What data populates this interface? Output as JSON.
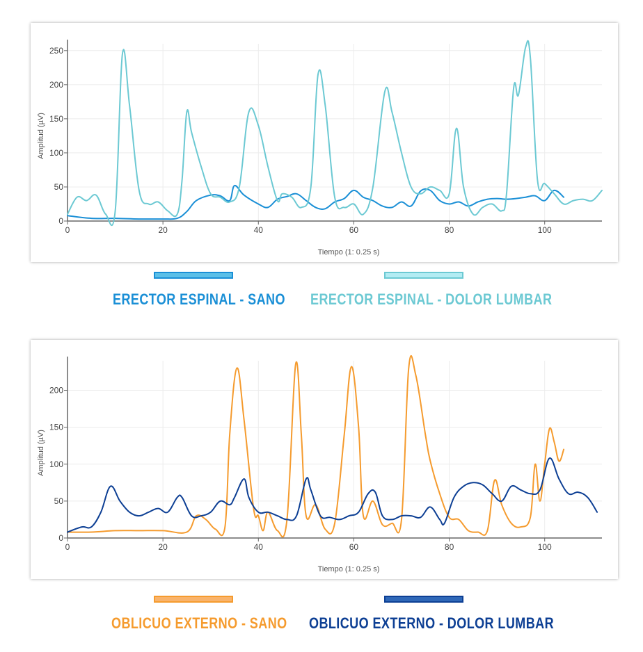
{
  "chart_data": [
    {
      "type": "line",
      "xlabel": "Tiempo (1: 0.25 s)",
      "ylabel": "Amplitud (µV)",
      "xlim": [
        0,
        112
      ],
      "ylim": [
        0,
        260
      ],
      "xticks": [
        0,
        20,
        40,
        60,
        80,
        100
      ],
      "yticks": [
        0,
        50,
        100,
        150,
        200,
        250
      ],
      "grid": true,
      "legend_position": "bottom",
      "series": [
        {
          "name": "ERECTOR ESPINAL - SANO",
          "color": "#1a8fd6",
          "x": [
            0,
            5,
            10,
            15,
            20,
            23,
            25,
            27,
            30,
            32,
            34,
            35,
            37,
            40,
            42,
            44,
            46,
            48,
            50,
            52,
            54,
            56,
            58,
            60,
            62,
            64,
            66,
            68,
            70,
            72,
            74,
            76,
            78,
            80,
            82,
            84,
            86,
            88,
            90,
            92,
            94,
            96,
            98,
            100,
            102,
            104
          ],
          "y": [
            8,
            4,
            4,
            3,
            3,
            4,
            14,
            30,
            38,
            37,
            30,
            52,
            38,
            25,
            20,
            32,
            36,
            40,
            30,
            20,
            18,
            28,
            33,
            45,
            35,
            30,
            22,
            20,
            28,
            22,
            44,
            45,
            30,
            25,
            28,
            22,
            28,
            32,
            33,
            32,
            33,
            35,
            37,
            30,
            45,
            35
          ]
        },
        {
          "name": "ERECTOR ESPINAL - DOLOR LUMBAR",
          "color": "#6cc9d3",
          "x": [
            0,
            2,
            4,
            6,
            8,
            10,
            11.5,
            13,
            15,
            17,
            19,
            21,
            23,
            24,
            25,
            26,
            28,
            30,
            32,
            34,
            36,
            38,
            40,
            42,
            44,
            45,
            47,
            49,
            51,
            52.5,
            54,
            56,
            58,
            60,
            62,
            64,
            66.5,
            68,
            70,
            72,
            74,
            76,
            78,
            80,
            81.5,
            83,
            85,
            87,
            89,
            91,
            92,
            93.5,
            94.5,
            96,
            97,
            98.5,
            100,
            102,
            104,
            106,
            108,
            110,
            112
          ],
          "y": [
            10,
            35,
            30,
            38,
            10,
            15,
            245,
            170,
            45,
            25,
            28,
            15,
            10,
            60,
            160,
            130,
            80,
            40,
            35,
            28,
            50,
            160,
            140,
            80,
            30,
            40,
            35,
            20,
            50,
            215,
            170,
            35,
            20,
            25,
            10,
            50,
            190,
            160,
            100,
            50,
            40,
            50,
            45,
            40,
            136,
            50,
            10,
            20,
            25,
            15,
            40,
            195,
            185,
            255,
            240,
            60,
            55,
            40,
            25,
            30,
            32,
            30,
            45
          ]
        }
      ]
    },
    {
      "type": "line",
      "xlabel": "Tiempo (1: 0.25 s)",
      "ylabel": "Amplitud (µV)",
      "xlim": [
        0,
        112
      ],
      "ylim": [
        0,
        240
      ],
      "xticks": [
        0,
        20,
        40,
        60,
        80,
        100
      ],
      "yticks": [
        0,
        50,
        100,
        150,
        200
      ],
      "grid": true,
      "legend_position": "bottom",
      "series": [
        {
          "name": "OBLICUO EXTERNO - SANO",
          "color": "#f59b2e",
          "x": [
            0,
            5,
            10,
            15,
            20,
            25,
            27,
            29,
            31,
            33,
            34,
            35.5,
            37,
            39,
            40,
            41,
            42,
            44,
            46,
            47.8,
            49,
            50,
            52,
            54,
            56,
            58,
            59.5,
            61,
            62,
            64,
            66,
            68,
            70,
            71.5,
            73,
            75,
            76,
            78,
            80,
            82,
            84,
            86,
            88,
            89.5,
            91,
            93,
            95,
            97,
            98,
            99,
            100,
            101,
            102,
            103,
            104
          ],
          "y": [
            8,
            8,
            10,
            10,
            10,
            8,
            30,
            25,
            12,
            15,
            140,
            230,
            160,
            40,
            30,
            10,
            35,
            10,
            25,
            235,
            140,
            30,
            45,
            12,
            20,
            140,
            232,
            150,
            30,
            50,
            18,
            20,
            25,
            230,
            220,
            140,
            105,
            60,
            28,
            25,
            10,
            8,
            10,
            78,
            45,
            20,
            15,
            28,
            100,
            50,
            100,
            148,
            130,
            104,
            120
          ]
        },
        {
          "name": "OBLICUO EXTERNO - DOLOR LUMBAR",
          "color": "#0d3f94",
          "x": [
            0,
            3,
            5,
            7,
            9,
            11,
            13,
            15,
            17,
            19,
            21,
            23,
            24,
            26,
            28,
            30,
            32,
            34,
            35,
            37,
            38,
            40,
            42,
            44,
            46,
            48,
            50,
            51,
            53,
            55,
            57,
            59,
            61,
            63,
            64.5,
            66,
            68,
            70,
            72,
            74,
            76,
            78,
            79,
            81,
            83,
            85,
            87,
            89,
            91,
            93,
            95,
            97,
            99,
            101,
            103,
            105,
            107,
            109,
            111
          ],
          "y": [
            8,
            15,
            15,
            35,
            70,
            50,
            35,
            30,
            35,
            40,
            35,
            55,
            55,
            30,
            30,
            35,
            50,
            45,
            55,
            80,
            55,
            35,
            35,
            30,
            25,
            30,
            80,
            65,
            30,
            28,
            25,
            30,
            35,
            60,
            62,
            30,
            25,
            30,
            30,
            28,
            42,
            25,
            20,
            55,
            70,
            75,
            72,
            60,
            50,
            70,
            65,
            60,
            65,
            108,
            80,
            60,
            62,
            55,
            35
          ]
        }
      ]
    }
  ],
  "legend": [
    {
      "label": "ERECTOR ESPINAL - SANO",
      "color": "#1a8fd6",
      "fill": "#5bbfe8"
    },
    {
      "label": "ERECTOR ESPINAL - DOLOR LUMBAR",
      "color": "#6cc9d3",
      "fill": "#b3ecf3"
    },
    {
      "label": "OBLICUO EXTERNO - SANO",
      "color": "#f59b2e",
      "fill": "#f9b36b"
    },
    {
      "label": "OBLICUO EXTERNO - DOLOR LUMBAR",
      "color": "#0d3f94",
      "fill": "#2f68b8"
    }
  ]
}
